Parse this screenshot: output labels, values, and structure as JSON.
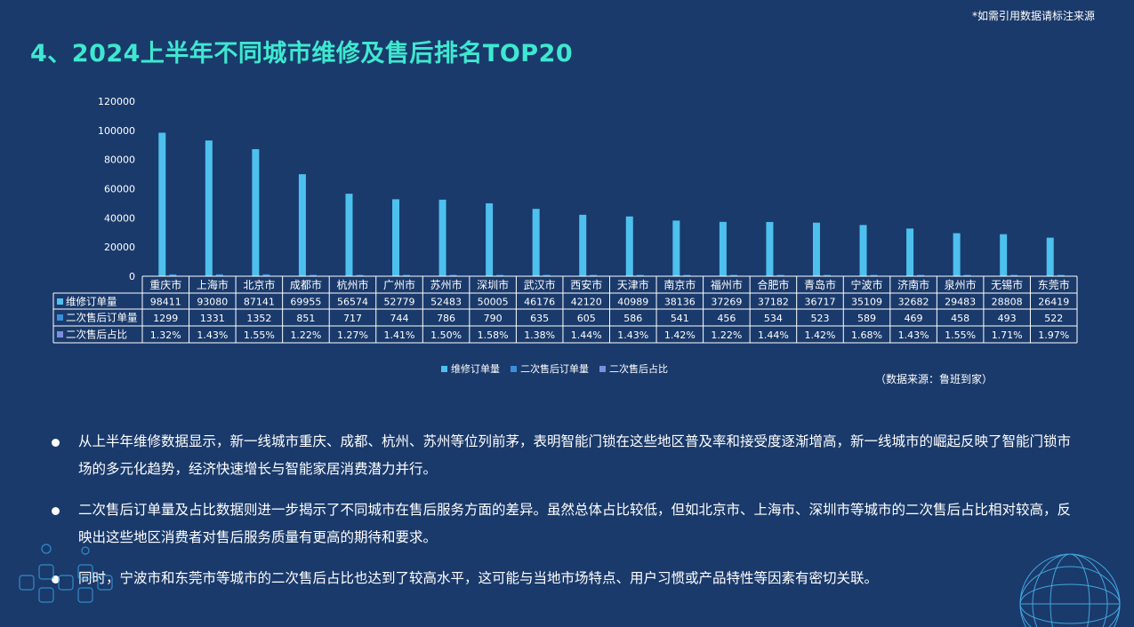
{
  "header": {
    "note": "*如需引用数据请标注来源",
    "title": "4、2024上半年不同城市维修及售后排名TOP20"
  },
  "chart_data": {
    "type": "bar",
    "categories": [
      "重庆市",
      "上海市",
      "北京市",
      "成都市",
      "杭州市",
      "广州市",
      "苏州市",
      "深圳市",
      "武汉市",
      "西安市",
      "天津市",
      "南京市",
      "福州市",
      "合肥市",
      "青岛市",
      "宁波市",
      "济南市",
      "泉州市",
      "无锡市",
      "东莞市"
    ],
    "series": [
      {
        "name": "维修订单量",
        "color": "#4ec0ee",
        "values": [
          98411,
          93080,
          87141,
          69955,
          56574,
          52779,
          52483,
          50005,
          46176,
          42120,
          40989,
          38136,
          37269,
          37182,
          36717,
          35109,
          32682,
          29483,
          28808,
          26419
        ]
      },
      {
        "name": "二次售后订单量",
        "color": "#3a8fd8",
        "values": [
          1299,
          1331,
          1352,
          851,
          717,
          744,
          786,
          790,
          635,
          605,
          586,
          541,
          456,
          534,
          523,
          589,
          469,
          458,
          493,
          522
        ]
      },
      {
        "name": "二次售后占比",
        "color": "#7b8fe0",
        "values": [
          "1.32%",
          "1.43%",
          "1.55%",
          "1.22%",
          "1.27%",
          "1.41%",
          "1.50%",
          "1.58%",
          "1.38%",
          "1.44%",
          "1.43%",
          "1.42%",
          "1.22%",
          "1.44%",
          "1.42%",
          "1.68%",
          "1.43%",
          "1.55%",
          "1.71%",
          "1.97%"
        ]
      }
    ],
    "ylim": [
      0,
      120000
    ],
    "yticks": [
      "0",
      "20000",
      "40000",
      "60000",
      "80000",
      "100000",
      "120000"
    ],
    "grid": false,
    "legend_position": "bottom"
  },
  "source": "（数据来源：鲁班到家）",
  "bullets": [
    "从上半年维修数据显示，新一线城市重庆、成都、杭州、苏州等位列前茅，表明智能门锁在这些地区普及率和接受度逐渐增高，新一线城市的崛起反映了智能门锁市场的多元化趋势，经济快速增长与智能家居消费潜力并行。",
    "二次售后订单量及占比数据则进一步揭示了不同城市在售后服务方面的差异。虽然总体占比较低，但如北京市、上海市、深圳市等城市的二次售后占比相对较高，反映出这些地区消费者对售后服务质量有更高的期待和要求。",
    "同时，宁波市和东莞市等城市的二次售后占比也达到了较高水平，这可能与当地市场特点、用户习惯或产品特性等因素有密切关联。"
  ]
}
